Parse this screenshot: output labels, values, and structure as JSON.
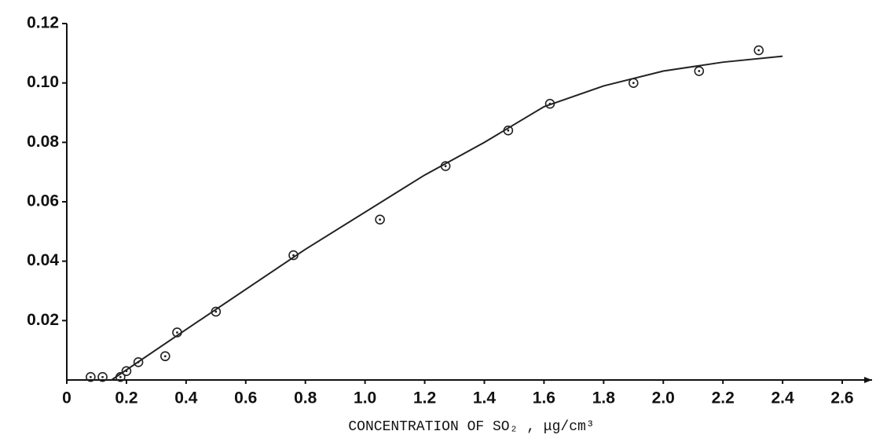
{
  "chart_data": {
    "type": "scatter",
    "x_label": "CONCENTRATION OF SO₂ , μg/cm³",
    "x": [
      0.08,
      0.12,
      0.18,
      0.2,
      0.24,
      0.33,
      0.37,
      0.5,
      0.76,
      1.05,
      1.27,
      1.48,
      1.62,
      1.9,
      2.12,
      2.32
    ],
    "values": [
      0.001,
      0.001,
      0.001,
      0.003,
      0.006,
      0.008,
      0.016,
      0.023,
      0.042,
      0.054,
      0.072,
      0.084,
      0.093,
      0.1,
      0.104,
      0.111
    ],
    "fit": {
      "x": [
        0.15,
        0.4,
        0.8,
        1.2,
        1.4,
        1.6,
        1.8,
        2.0,
        2.2,
        2.4
      ],
      "values": [
        0,
        0.017,
        0.044,
        0.069,
        0.08,
        0.092,
        0.099,
        0.104,
        0.107,
        0.109
      ]
    },
    "color": "#222222",
    "xlim": [
      0,
      2.7
    ],
    "ylim": [
      0,
      0.12
    ],
    "xticks": [
      0,
      0.2,
      0.4,
      0.6,
      0.8,
      {
        "value": 1,
        "label": "1.0"
      },
      1.2,
      1.4,
      1.6,
      1.8,
      {
        "value": 2,
        "label": "2.0"
      },
      2.2,
      2.4,
      2.6
    ],
    "yticks": [
      0.02,
      0.04,
      0.06,
      0.08,
      {
        "value": 0.1,
        "label": "0.10"
      },
      0.12
    ]
  }
}
